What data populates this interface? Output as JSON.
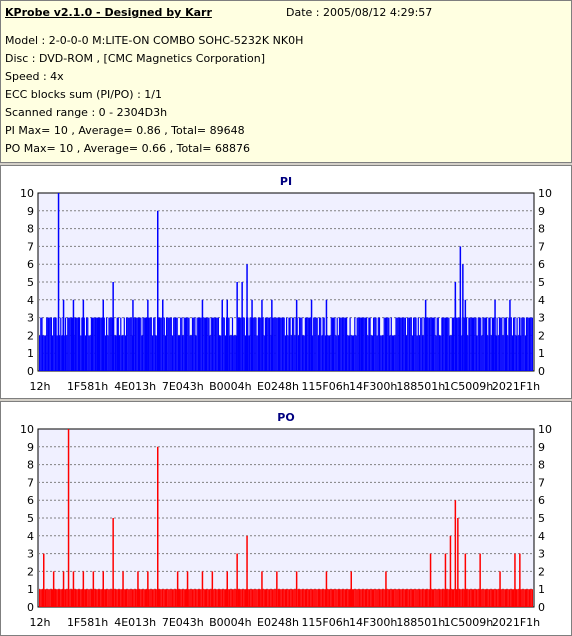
{
  "header": {
    "title": "KProbe v2.1.0 - Designed by Karr",
    "date": "Date : 2005/08/12 4:29:57",
    "lines": [
      "Model : 2-0-0-0 M:LITE-ON COMBO SOHC-5232K NK0H",
      "Disc : DVD-ROM ,  [CMC Magnetics Corporation]",
      "Speed : 4x",
      "ECC blocks sum (PI/PO) : 1/1",
      "Scanned range : 0 - 2304D3h",
      "PI Max= 10 , Average= 0.86 , Total= 89648",
      "PO Max= 10 , Average= 0.66 , Total= 68876"
    ]
  },
  "colors": {
    "pi": "#0000ff",
    "po": "#ff0000",
    "plot_bg": "#f0f0ff"
  },
  "chart_data": [
    {
      "type": "bar",
      "title": "PI",
      "ylim": [
        0,
        10
      ],
      "yticks": [
        "0",
        "1",
        "2",
        "3",
        "4",
        "5",
        "6",
        "7",
        "8",
        "9",
        "10"
      ],
      "xticks": [
        "12h",
        "1F581h",
        "4E013h",
        "7E043h",
        "B0004h",
        "E0248h",
        "115F06h",
        "14F300h",
        "188501h",
        "1C5009h",
        "2021F1h"
      ],
      "baseline": 3,
      "spikes": [
        [
          0.02,
          3
        ],
        [
          0.04,
          10
        ],
        [
          0.05,
          4
        ],
        [
          0.07,
          4
        ],
        [
          0.09,
          4
        ],
        [
          0.12,
          3
        ],
        [
          0.13,
          4
        ],
        [
          0.15,
          5
        ],
        [
          0.16,
          3
        ],
        [
          0.19,
          4
        ],
        [
          0.22,
          4
        ],
        [
          0.24,
          9
        ],
        [
          0.25,
          4
        ],
        [
          0.33,
          4
        ],
        [
          0.37,
          4
        ],
        [
          0.38,
          4
        ],
        [
          0.4,
          5
        ],
        [
          0.41,
          5
        ],
        [
          0.42,
          6
        ],
        [
          0.43,
          4
        ],
        [
          0.45,
          4
        ],
        [
          0.47,
          4
        ],
        [
          0.52,
          4
        ],
        [
          0.55,
          4
        ],
        [
          0.58,
          4
        ],
        [
          0.65,
          3
        ],
        [
          0.78,
          4
        ],
        [
          0.84,
          4
        ],
        [
          0.84,
          5
        ],
        [
          0.85,
          7
        ],
        [
          0.855,
          6
        ],
        [
          0.86,
          4
        ],
        [
          0.92,
          4
        ],
        [
          0.95,
          4
        ],
        [
          0.97,
          3
        ]
      ],
      "series": [
        {
          "name": "",
          "average": 0.86,
          "max": 10
        }
      ]
    },
    {
      "type": "bar",
      "title": "PO",
      "ylim": [
        0,
        10
      ],
      "yticks": [
        "0",
        "1",
        "2",
        "3",
        "4",
        "5",
        "6",
        "7",
        "8",
        "9",
        "10"
      ],
      "xticks": [
        "12h",
        "1F581h",
        "4E013h",
        "7E043h",
        "B0004h",
        "E0248h",
        "115F06h",
        "14F300h",
        "188501h",
        "1C5009h",
        "2021F1h"
      ],
      "baseline": 1,
      "spikes": [
        [
          0.01,
          3
        ],
        [
          0.03,
          2
        ],
        [
          0.05,
          2
        ],
        [
          0.06,
          10
        ],
        [
          0.07,
          2
        ],
        [
          0.09,
          2
        ],
        [
          0.11,
          2
        ],
        [
          0.13,
          2
        ],
        [
          0.15,
          5
        ],
        [
          0.17,
          2
        ],
        [
          0.2,
          2
        ],
        [
          0.22,
          2
        ],
        [
          0.24,
          9
        ],
        [
          0.28,
          2
        ],
        [
          0.3,
          2
        ],
        [
          0.33,
          2
        ],
        [
          0.35,
          2
        ],
        [
          0.38,
          2
        ],
        [
          0.4,
          3
        ],
        [
          0.42,
          4
        ],
        [
          0.45,
          2
        ],
        [
          0.48,
          2
        ],
        [
          0.52,
          2
        ],
        [
          0.58,
          2
        ],
        [
          0.63,
          2
        ],
        [
          0.7,
          2
        ],
        [
          0.79,
          3
        ],
        [
          0.82,
          3
        ],
        [
          0.83,
          4
        ],
        [
          0.84,
          6
        ],
        [
          0.845,
          5
        ],
        [
          0.86,
          3
        ],
        [
          0.89,
          3
        ],
        [
          0.93,
          2
        ],
        [
          0.96,
          3
        ],
        [
          0.97,
          3
        ]
      ],
      "series": [
        {
          "name": "",
          "average": 0.66,
          "max": 10
        }
      ]
    }
  ]
}
